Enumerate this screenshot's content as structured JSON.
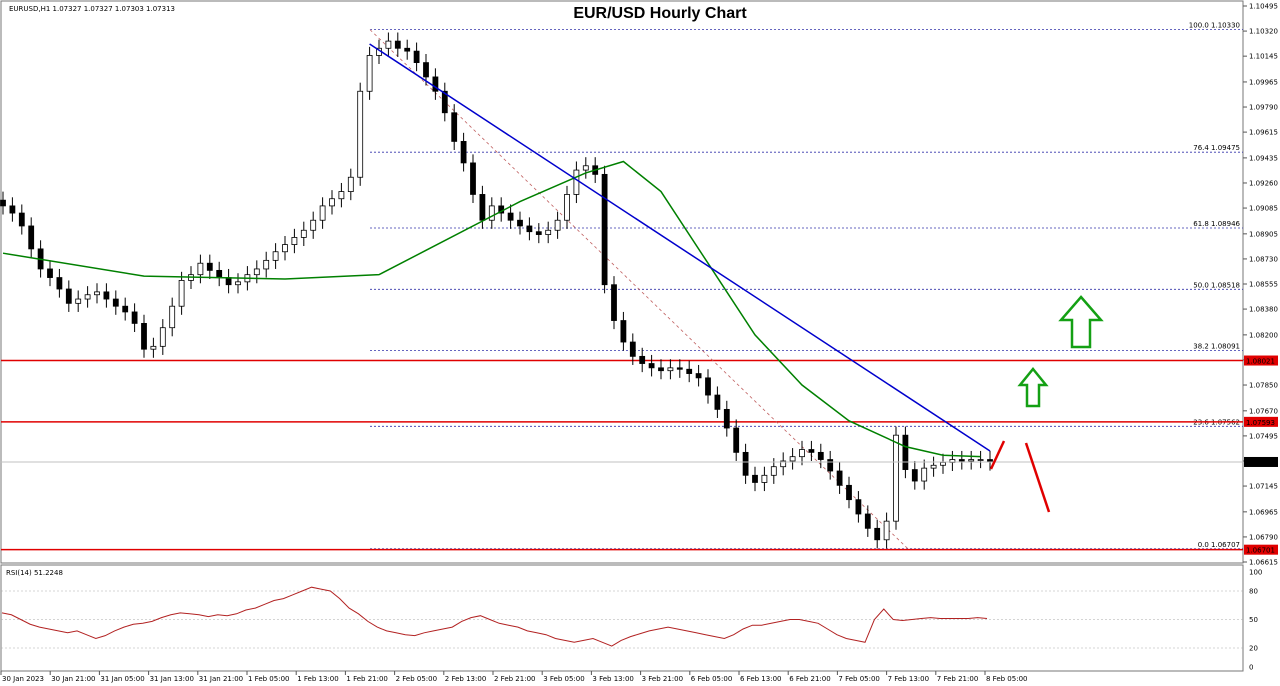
{
  "chart_data": {
    "type": "candlestick",
    "title": "EUR/USD Hourly Chart",
    "symbol_header": "EURUSD,H1  1.07327 1.07327 1.07303 1.07313",
    "y_ticks": [
      "1.10495",
      "1.10320",
      "1.10145",
      "1.09965",
      "1.09790",
      "1.09615",
      "1.09435",
      "1.09260",
      "1.09085",
      "1.08905",
      "1.08730",
      "1.08555",
      "1.08380",
      "1.08200",
      "1.08025",
      "1.07850",
      "1.07670",
      "1.07495",
      "1.07320",
      "1.07145",
      "1.06965",
      "1.06790",
      "1.06615"
    ],
    "y_range": [
      1.0657,
      1.1053
    ],
    "x_ticks": [
      "30 Jan 2023",
      "30 Jan 21:00",
      "31 Jan 05:00",
      "31 Jan 13:00",
      "31 Jan 21:00",
      "1 Feb 05:00",
      "1 Feb 13:00",
      "1 Feb 21:00",
      "2 Feb 05:00",
      "2 Feb 13:00",
      "2 Feb 21:00",
      "3 Feb 05:00",
      "3 Feb 13:00",
      "3 Feb 21:00",
      "6 Feb 05:00",
      "6 Feb 13:00",
      "6 Feb 21:00",
      "7 Feb 05:00",
      "7 Feb 13:00",
      "7 Feb 21:00",
      "8 Feb 05:00"
    ],
    "current_price": "1.07313",
    "candles_close": [
      1.091,
      1.0905,
      1.0896,
      1.088,
      1.0866,
      1.086,
      1.0852,
      1.0842,
      1.0845,
      1.0848,
      1.085,
      1.0845,
      1.084,
      1.0836,
      1.0828,
      1.081,
      1.0812,
      1.0825,
      1.084,
      1.0858,
      1.0862,
      1.087,
      1.0865,
      1.086,
      1.0855,
      1.0857,
      1.0862,
      1.0866,
      1.0872,
      1.0878,
      1.0883,
      1.0888,
      1.0893,
      1.09,
      1.091,
      1.0915,
      1.092,
      1.093,
      1.099,
      1.1015,
      1.102,
      1.1025,
      1.102,
      1.1018,
      1.101,
      1.1,
      1.099,
      1.0975,
      1.0955,
      1.094,
      1.0918,
      1.09,
      1.091,
      1.0905,
      1.09,
      1.0896,
      1.0892,
      1.089,
      1.0893,
      1.09,
      1.0918,
      1.0935,
      1.0938,
      1.0932,
      1.0855,
      1.083,
      1.0815,
      1.0805,
      1.08,
      1.0797,
      1.0795,
      1.0797,
      1.0796,
      1.0793,
      1.079,
      1.0778,
      1.0768,
      1.0755,
      1.0738,
      1.0722,
      1.0717,
      1.0722,
      1.0728,
      1.0732,
      1.0735,
      1.074,
      1.0738,
      1.0733,
      1.0725,
      1.0715,
      1.0705,
      1.0695,
      1.0685,
      1.0677,
      1.069,
      1.075,
      1.0726,
      1.0718,
      1.0727,
      1.0729,
      1.0731,
      1.0733,
      1.0732,
      1.0733,
      1.0733,
      1.07313
    ],
    "ma_series": {
      "x_index": [
        0,
        15,
        30,
        40,
        45,
        55,
        62,
        66,
        70,
        75,
        80,
        85,
        90,
        96,
        100,
        104
      ],
      "values": [
        1.0877,
        1.0861,
        1.0859,
        1.0862,
        1.0879,
        1.0913,
        1.0933,
        1.0941,
        1.092,
        1.087,
        1.082,
        1.0785,
        1.076,
        1.0742,
        1.0736,
        1.0735
      ]
    },
    "horizontal_levels": [
      {
        "price": 1.08021,
        "label": "1.08021",
        "color": "#e00000"
      },
      {
        "price": 1.07593,
        "label": "1.07593",
        "color": "#e00000"
      },
      {
        "price": 1.06701,
        "label": "1.06701",
        "color": "#e00000"
      }
    ],
    "fibonacci": [
      {
        "level": "100.0",
        "price": 1.1033,
        "label": "100.0 1.10330"
      },
      {
        "level": "76.4",
        "price": 1.09475,
        "label": "76.4 1.09475"
      },
      {
        "level": "61.8",
        "price": 1.08946,
        "label": "61.8 1.08946"
      },
      {
        "level": "50.0",
        "price": 1.08518,
        "label": "50.0 1.08518"
      },
      {
        "level": "38.2",
        "price": 1.08091,
        "label": "38.2 1.08091"
      },
      {
        "level": "23.6",
        "price": 1.07562,
        "label": "23.6 1.07562"
      },
      {
        "level": "0.0",
        "price": 1.06707,
        "label": "0.0 1.06707"
      }
    ],
    "trend_line": {
      "from": {
        "x_index": 39,
        "price": 1.1023
      },
      "to": {
        "x_index": 105,
        "price": 1.0739
      },
      "color": "#0000cc"
    },
    "rsi": {
      "label": "RSI(14) 51.2248",
      "ticks": [
        "100",
        "80",
        "50",
        "20",
        "0"
      ],
      "range": [
        0,
        100
      ],
      "values": [
        57,
        55,
        50,
        45,
        42,
        40,
        38,
        36,
        38,
        34,
        30,
        33,
        38,
        42,
        45,
        46,
        48,
        52,
        55,
        57,
        56,
        55,
        53,
        55,
        54,
        56,
        60,
        62,
        66,
        70,
        72,
        76,
        80,
        84,
        82,
        80,
        72,
        62,
        56,
        48,
        42,
        38,
        36,
        34,
        33,
        36,
        38,
        40,
        42,
        48,
        52,
        54,
        50,
        46,
        44,
        42,
        38,
        36,
        34,
        30,
        28,
        26,
        28,
        30,
        26,
        22,
        28,
        32,
        35,
        38,
        40,
        42,
        40,
        38,
        36,
        34,
        32,
        30,
        34,
        40,
        44,
        44,
        46,
        48,
        50,
        50,
        48,
        46,
        40,
        34,
        30,
        28,
        26,
        50,
        61,
        50,
        49,
        50,
        51,
        52,
        51,
        51,
        51,
        51,
        52,
        51
      ]
    }
  },
  "colors": {
    "candle": "#000000",
    "ma": "#008000",
    "trend": "#0000cc",
    "fib": "#3333aa",
    "level": "#e00000",
    "grid": "#c0c0c0",
    "arrow_up": "#14a014",
    "arrow_down": "#e00000"
  }
}
